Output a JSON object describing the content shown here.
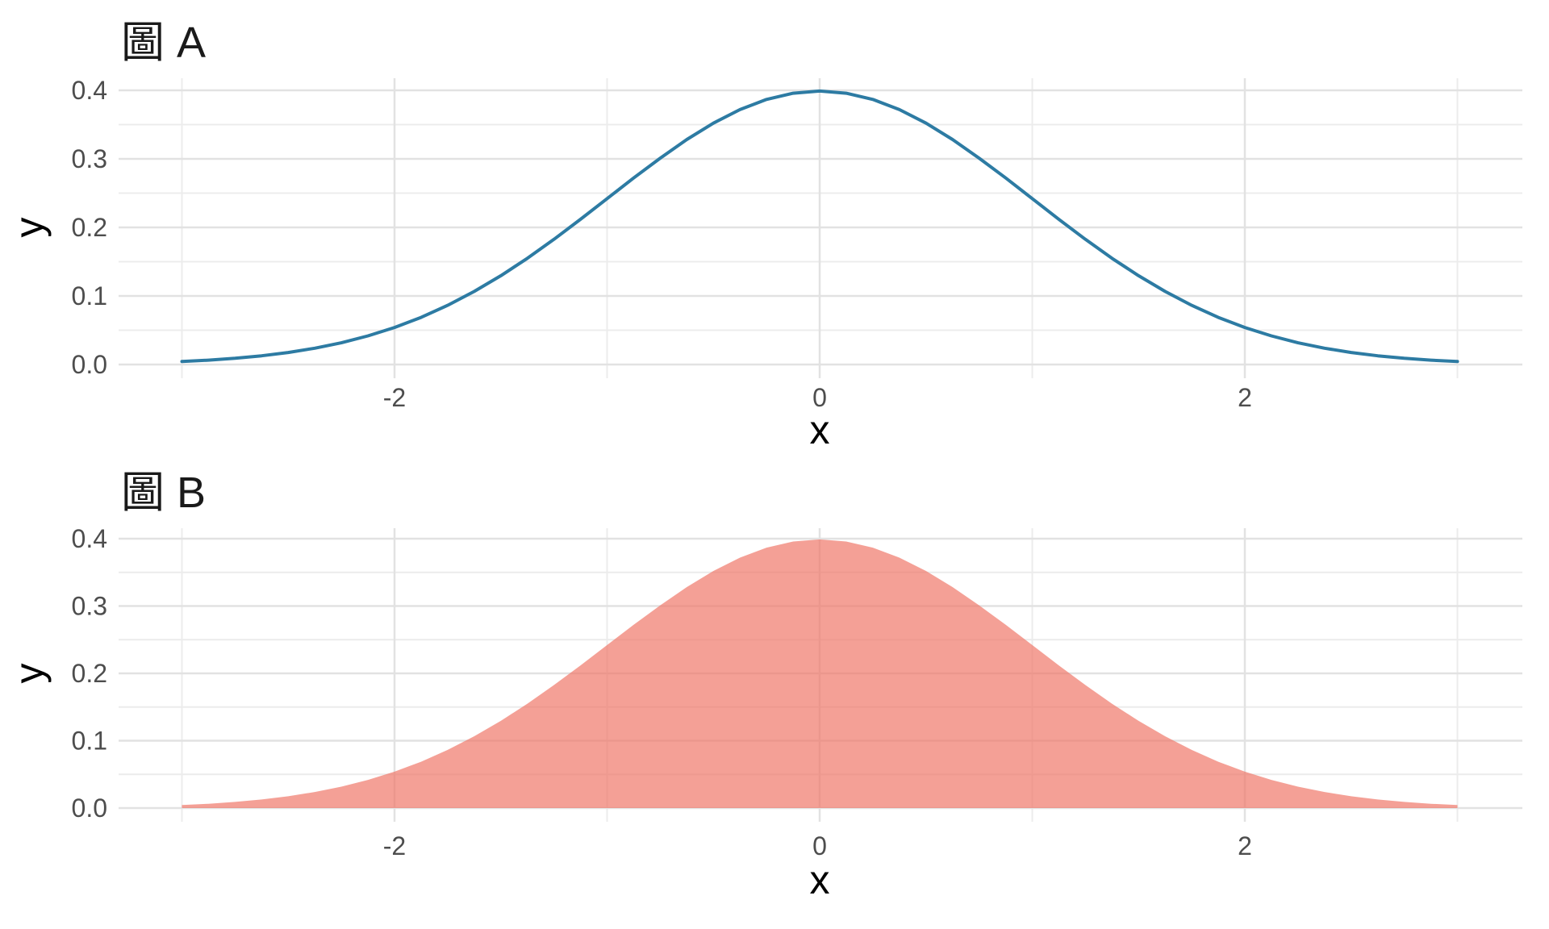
{
  "page": {
    "background": "#ffffff"
  },
  "chart_data": [
    {
      "id": "A",
      "type": "line",
      "title": "圖 A",
      "xlabel": "x",
      "ylabel": "y",
      "x": [
        -3,
        -2.875,
        -2.75,
        -2.625,
        -2.5,
        -2.375,
        -2.25,
        -2.125,
        -2,
        -1.875,
        -1.75,
        -1.625,
        -1.5,
        -1.375,
        -1.25,
        -1.125,
        -1,
        -0.875,
        -0.75,
        -0.625,
        -0.5,
        -0.375,
        -0.25,
        -0.125,
        0,
        0.125,
        0.25,
        0.375,
        0.5,
        0.625,
        0.75,
        0.875,
        1,
        1.125,
        1.25,
        1.375,
        1.5,
        1.625,
        1.75,
        1.875,
        2,
        2.125,
        2.25,
        2.375,
        2.5,
        2.625,
        2.75,
        2.875,
        3
      ],
      "y": [
        0.0044,
        0.0064,
        0.0091,
        0.0127,
        0.0175,
        0.0238,
        0.0317,
        0.0418,
        0.054,
        0.0687,
        0.0863,
        0.1066,
        0.1295,
        0.155,
        0.1826,
        0.2119,
        0.242,
        0.2721,
        0.3011,
        0.3282,
        0.3521,
        0.3719,
        0.3867,
        0.3958,
        0.3989,
        0.3958,
        0.3867,
        0.3719,
        0.3521,
        0.3282,
        0.3011,
        0.2721,
        0.242,
        0.2119,
        0.1826,
        0.155,
        0.1295,
        0.1066,
        0.0863,
        0.0687,
        0.054,
        0.0418,
        0.0317,
        0.0238,
        0.0175,
        0.0127,
        0.0091,
        0.0064,
        0.0044
      ],
      "xlim": [
        -3.3,
        3.3
      ],
      "ylim": [
        -0.02,
        0.418
      ],
      "xticks": [
        -2,
        0,
        2
      ],
      "xtick_labels": [
        "-2",
        "0",
        "2"
      ],
      "yticks": [
        0,
        0.1,
        0.2,
        0.3,
        0.4
      ],
      "ytick_labels": [
        "0.0",
        "0.1",
        "0.2",
        "0.3",
        "0.4"
      ],
      "minor_xticks": [
        -3,
        -1,
        1,
        3
      ],
      "minor_yticks": [
        0.05,
        0.15,
        0.25,
        0.35
      ],
      "grid": "major+minor",
      "legend": "none",
      "line_color": "#2d7ba3",
      "line_width": 4,
      "fill_color": null,
      "fill_opacity": null
    },
    {
      "id": "B",
      "type": "area",
      "title": "圖 B",
      "xlabel": "x",
      "ylabel": "y",
      "x": [
        -3,
        -2.875,
        -2.75,
        -2.625,
        -2.5,
        -2.375,
        -2.25,
        -2.125,
        -2,
        -1.875,
        -1.75,
        -1.625,
        -1.5,
        -1.375,
        -1.25,
        -1.125,
        -1,
        -0.875,
        -0.75,
        -0.625,
        -0.5,
        -0.375,
        -0.25,
        -0.125,
        0,
        0.125,
        0.25,
        0.375,
        0.5,
        0.625,
        0.75,
        0.875,
        1,
        1.125,
        1.25,
        1.375,
        1.5,
        1.625,
        1.75,
        1.875,
        2,
        2.125,
        2.25,
        2.375,
        2.5,
        2.625,
        2.75,
        2.875,
        3
      ],
      "y": [
        0.0044,
        0.0064,
        0.0091,
        0.0127,
        0.0175,
        0.0238,
        0.0317,
        0.0418,
        0.054,
        0.0687,
        0.0863,
        0.1066,
        0.1295,
        0.155,
        0.1826,
        0.2119,
        0.242,
        0.2721,
        0.3011,
        0.3282,
        0.3521,
        0.3719,
        0.3867,
        0.3958,
        0.3989,
        0.3958,
        0.3867,
        0.3719,
        0.3521,
        0.3282,
        0.3011,
        0.2721,
        0.242,
        0.2119,
        0.1826,
        0.155,
        0.1295,
        0.1066,
        0.0863,
        0.0687,
        0.054,
        0.0418,
        0.0317,
        0.0238,
        0.0175,
        0.0127,
        0.0091,
        0.0064,
        0.0044
      ],
      "xlim": [
        -3.3,
        3.3
      ],
      "ylim": [
        -0.02,
        0.418
      ],
      "xticks": [
        -2,
        0,
        2
      ],
      "xtick_labels": [
        "-2",
        "0",
        "2"
      ],
      "yticks": [
        0,
        0.1,
        0.2,
        0.3,
        0.4
      ],
      "ytick_labels": [
        "0.0",
        "0.1",
        "0.2",
        "0.3",
        "0.4"
      ],
      "minor_xticks": [
        -3,
        -1,
        1,
        3
      ],
      "minor_yticks": [
        0.05,
        0.15,
        0.25,
        0.35
      ],
      "grid": "major+minor",
      "legend": "none",
      "line_color": null,
      "line_width": 0,
      "fill_color": "#f07869",
      "fill_opacity": 0.7
    }
  ]
}
